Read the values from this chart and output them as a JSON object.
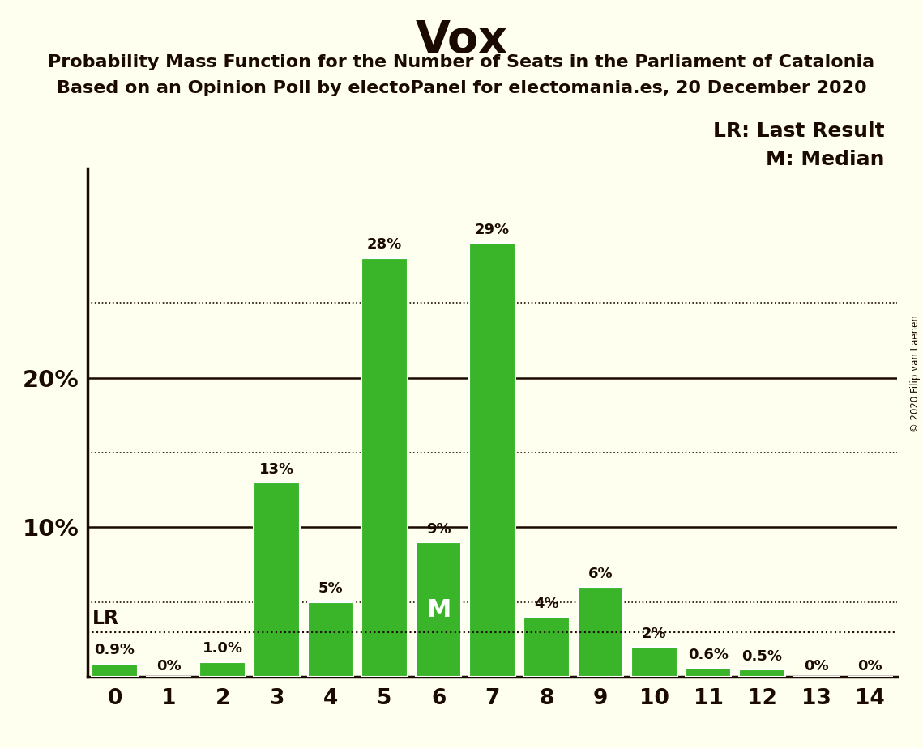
{
  "title": "Vox",
  "subtitle1": "Probability Mass Function for the Number of Seats in the Parliament of Catalonia",
  "subtitle2": "Based on an Opinion Poll by electoPanel for electomania.es, 20 December 2020",
  "copyright": "© 2020 Filip van Laenen",
  "seats": [
    0,
    1,
    2,
    3,
    4,
    5,
    6,
    7,
    8,
    9,
    10,
    11,
    12,
    13,
    14
  ],
  "probabilities": [
    0.9,
    0.0,
    1.0,
    13.0,
    5.0,
    28.0,
    9.0,
    29.0,
    4.0,
    6.0,
    2.0,
    0.6,
    0.5,
    0.0,
    0.0
  ],
  "bar_color": "#3ab52a",
  "bar_edge_color": "#ffffff",
  "background_color": "#fffff0",
  "text_color": "#1a0a00",
  "lr_value": 3.0,
  "median_seat": 6,
  "legend_lr": "LR: Last Result",
  "legend_m": "M: Median",
  "ylim": [
    0,
    34
  ],
  "xlim": [
    -0.5,
    14.5
  ],
  "bar_labels": [
    "0.9%",
    "0%",
    "1.0%",
    "13%",
    "5%",
    "28%",
    "9%",
    "29%",
    "4%",
    "6%",
    "2%",
    "0.6%",
    "0.5%",
    "0%",
    "0%"
  ]
}
